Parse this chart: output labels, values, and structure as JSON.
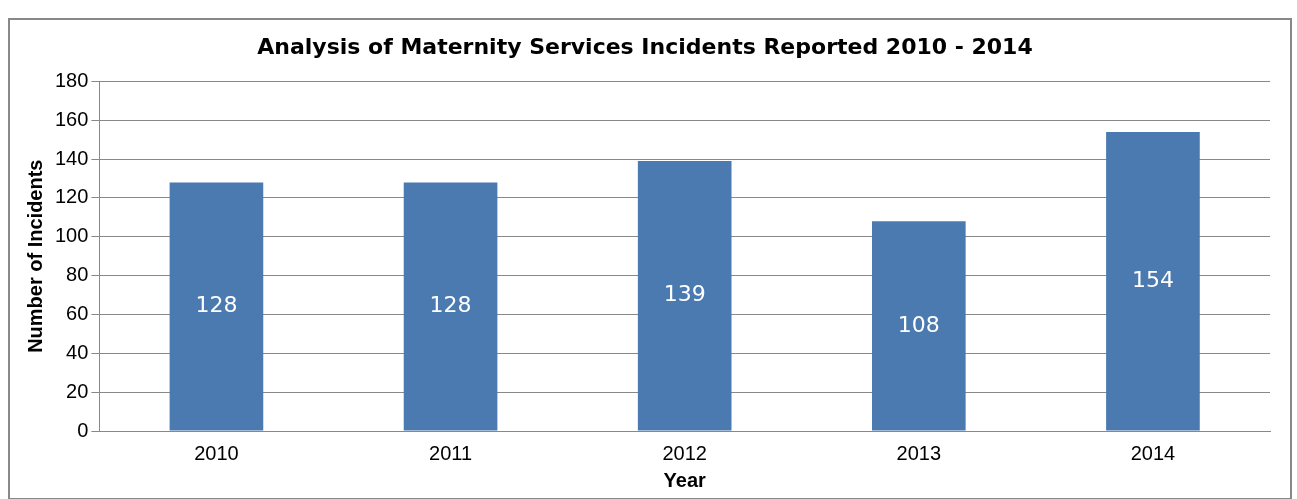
{
  "chart_data": {
    "type": "bar",
    "title": "Analysis of Maternity Services Incidents Reported 2010 - 2014",
    "xlabel": "Year",
    "ylabel": "Number of Incidents",
    "categories": [
      "2010",
      "2011",
      "2012",
      "2013",
      "2014"
    ],
    "values": [
      128,
      128,
      139,
      108,
      154
    ],
    "color": "#4a7ab0",
    "ylim": [
      0,
      180
    ],
    "yticks": [
      0,
      20,
      40,
      60,
      80,
      100,
      120,
      140,
      160,
      180
    ],
    "grid": "y",
    "data_labels": true,
    "legend": false
  }
}
